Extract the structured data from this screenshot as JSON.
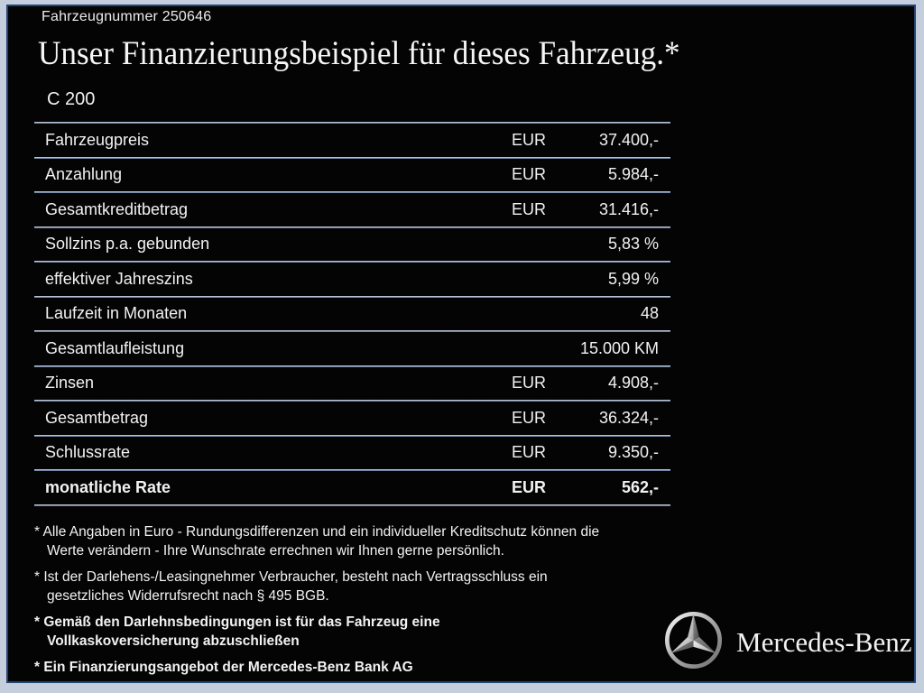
{
  "page": {
    "vehicle_number": "Fahrzeugnummer 250646",
    "title": "Unser Finanzierungsbeispiel für dieses Fahrzeug.*",
    "model": "C 200"
  },
  "table": {
    "rows": [
      {
        "label": "Fahrzeugpreis",
        "currency": "EUR",
        "value": "37.400,-",
        "bold": false
      },
      {
        "label": "Anzahlung",
        "currency": "EUR",
        "value": "5.984,-",
        "bold": false
      },
      {
        "label": "Gesamtkreditbetrag",
        "currency": "EUR",
        "value": "31.416,-",
        "bold": false
      },
      {
        "label": "Sollzins p.a. gebunden",
        "currency": "",
        "value": "5,83 %",
        "bold": false
      },
      {
        "label": "effektiver Jahreszins",
        "currency": "",
        "value": "5,99 %",
        "bold": false
      },
      {
        "label": "Laufzeit in Monaten",
        "currency": "",
        "value": "48",
        "bold": false
      },
      {
        "label": "Gesamtlaufleistung",
        "currency": "",
        "value": "15.000 KM",
        "bold": false
      },
      {
        "label": "Zinsen",
        "currency": "EUR",
        "value": "4.908,-",
        "bold": false
      },
      {
        "label": "Gesamtbetrag",
        "currency": "EUR",
        "value": "36.324,-",
        "bold": false
      },
      {
        "label": "Schlussrate",
        "currency": "EUR",
        "value": "9.350,-",
        "bold": false
      },
      {
        "label": "monatliche Rate",
        "currency": "EUR",
        "value": "562,-",
        "bold": true
      }
    ]
  },
  "footnotes": [
    {
      "text": "* Alle Angaben in Euro - Rundungsdifferenzen und ein individueller Kreditschutz können die\nWerte verändern - Ihre Wunschrate errechnen wir Ihnen gerne persönlich.",
      "bold": false
    },
    {
      "text": "* Ist der Darlehens-/Leasingnehmer Verbraucher, besteht nach Vertragsschluss ein\ngesetzliches Widerrufsrecht nach § 495 BGB.",
      "bold": false
    },
    {
      "text": "* Gemäß den Darlehnsbedingungen ist für das Fahrzeug eine\nVollkaskoversicherung abzuschließen",
      "bold": true
    },
    {
      "text": "* Ein Finanzierungsangebot der Mercedes-Benz Bank AG",
      "bold": true
    }
  ],
  "brand": {
    "logo_icon": "mercedes-star-icon",
    "name": "Mercedes-Benz"
  },
  "colors": {
    "frame": "#c4cedd",
    "inner_border": "#234672",
    "background": "#040404",
    "text": "#f2f2f2",
    "separator_light": "#d6dfea",
    "separator_dark": "#51668a"
  }
}
